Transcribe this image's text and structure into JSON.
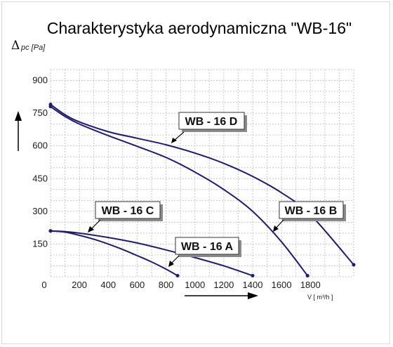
{
  "chart_data": {
    "type": "line",
    "title": "Charakterystyka aerodynamiczna \"WB-16\"",
    "ylabel_symbol": "Δ",
    "ylabel_rest": "pc [Pa]",
    "xlabel": "V [ m³/h ]",
    "xlim": [
      0,
      2100
    ],
    "ylim": [
      0,
      950
    ],
    "x_ticks": [
      0,
      200,
      400,
      600,
      800,
      1000,
      1200,
      1400,
      1600,
      1800
    ],
    "y_ticks": [
      150,
      300,
      450,
      600,
      750,
      900
    ],
    "grid": true,
    "series": [
      {
        "name": "WB - 16 A",
        "x": [
          0,
          100,
          200,
          300,
          400,
          500,
          600,
          700,
          800,
          880
        ],
        "y": [
          210,
          205,
          190,
          172,
          150,
          125,
          97,
          68,
          35,
          5
        ]
      },
      {
        "name": "WB - 16 C",
        "x": [
          0,
          100,
          200,
          400,
          600,
          800,
          1000,
          1200,
          1400
        ],
        "y": [
          210,
          207,
          200,
          180,
          155,
          123,
          88,
          50,
          5
        ]
      },
      {
        "name": "WB - 16 B",
        "x": [
          0,
          100,
          200,
          400,
          600,
          800,
          1000,
          1200,
          1400,
          1600,
          1780
        ],
        "y": [
          780,
          735,
          700,
          647,
          598,
          547,
          480,
          400,
          300,
          160,
          5
        ]
      },
      {
        "name": "WB - 16 D",
        "x": [
          0,
          100,
          200,
          400,
          600,
          800,
          1000,
          1200,
          1400,
          1600,
          1800,
          2100
        ],
        "y": [
          790,
          743,
          710,
          665,
          635,
          605,
          567,
          520,
          460,
          385,
          285,
          55
        ]
      }
    ]
  },
  "curve_color": "#1f1b6e"
}
